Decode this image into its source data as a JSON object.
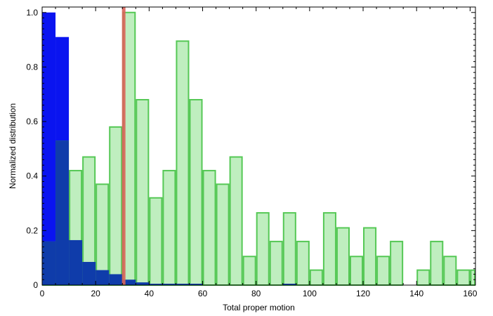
{
  "chart_data": {
    "type": "bar",
    "title": "",
    "xlabel": "Total proper motion",
    "ylabel": "Normalized distribution",
    "xlim": [
      0,
      162
    ],
    "ylim": [
      0,
      1.02
    ],
    "x_ticks": [
      0,
      20,
      40,
      60,
      80,
      100,
      120,
      140,
      160
    ],
    "x_tick_labels": [
      "0",
      "20",
      "40",
      "60",
      "80",
      "100",
      "120",
      "140",
      "160"
    ],
    "y_ticks": [
      0,
      0.2,
      0.4,
      0.6,
      0.8,
      1.0
    ],
    "y_tick_labels": [
      "0",
      "0.2",
      "0.4",
      "0.6",
      "0.8",
      "1.0"
    ],
    "grid": false,
    "bin_width": 5,
    "vertical_line": {
      "x": 30.5,
      "color": "#d9645a"
    },
    "series": [
      {
        "color": "#0a14f0",
        "overlap_color": "#0f3caa",
        "bin_starts": [
          0,
          5,
          10,
          15,
          20,
          25,
          30,
          35,
          40,
          45,
          50,
          55,
          90
        ],
        "values": [
          1.0,
          0.91,
          0.165,
          0.085,
          0.055,
          0.04,
          0.02,
          0.01,
          0.005,
          0.005,
          0.005,
          0.005,
          0.005
        ]
      },
      {
        "fill_color": "#bfeebf",
        "edge_color": "#55c855",
        "bin_starts": [
          0,
          5,
          10,
          15,
          20,
          25,
          30,
          35,
          40,
          45,
          50,
          55,
          60,
          65,
          70,
          75,
          80,
          85,
          90,
          95,
          100,
          105,
          110,
          115,
          120,
          125,
          130,
          140,
          145,
          150,
          155,
          160
        ],
        "values": [
          0.16,
          0.53,
          0.42,
          0.47,
          0.37,
          0.58,
          1.0,
          0.68,
          0.32,
          0.42,
          0.895,
          0.68,
          0.42,
          0.37,
          0.47,
          0.105,
          0.265,
          0.16,
          0.265,
          0.16,
          0.055,
          0.265,
          0.21,
          0.105,
          0.21,
          0.105,
          0.16,
          0.055,
          0.16,
          0.105,
          0.055,
          0.055
        ]
      }
    ]
  }
}
